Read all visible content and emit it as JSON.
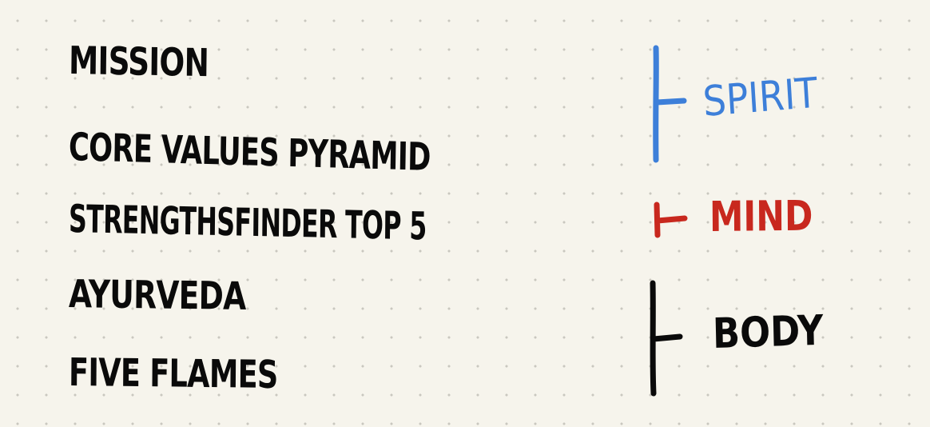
{
  "items": [
    "Mission",
    "Core Values Pyramid",
    "StrengthsFinder Top 5",
    "Ayurveda",
    "Five Flames"
  ],
  "groups": [
    {
      "label": "Spirit",
      "color": "#3d7fd9"
    },
    {
      "label": "Mind",
      "color": "#c8281e"
    },
    {
      "label": "Body",
      "color": "#0a0a0a"
    }
  ],
  "colors": {
    "background": "#f6f4ec",
    "dot_grid": "#c9c7bf",
    "ink": "#0a0a0a"
  }
}
